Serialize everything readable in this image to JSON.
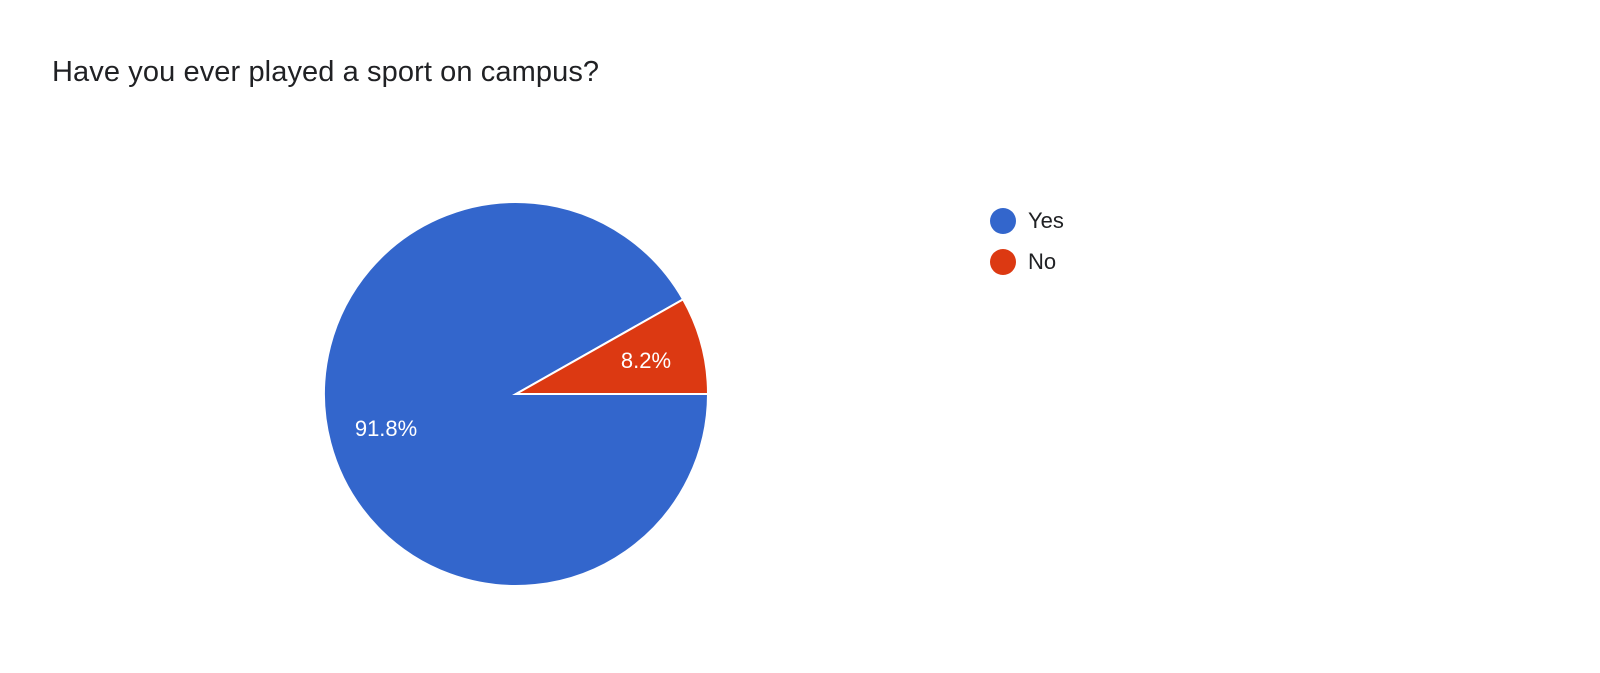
{
  "chart_data": {
    "type": "pie",
    "title": "Have you ever played a sport on campus?",
    "categories": [
      "Yes",
      "No"
    ],
    "values": [
      91.8,
      8.2
    ],
    "data_labels": [
      "91.8%",
      "8.2%"
    ],
    "colors": [
      "#3366cc",
      "#dc3912"
    ],
    "legend_position": "right"
  }
}
